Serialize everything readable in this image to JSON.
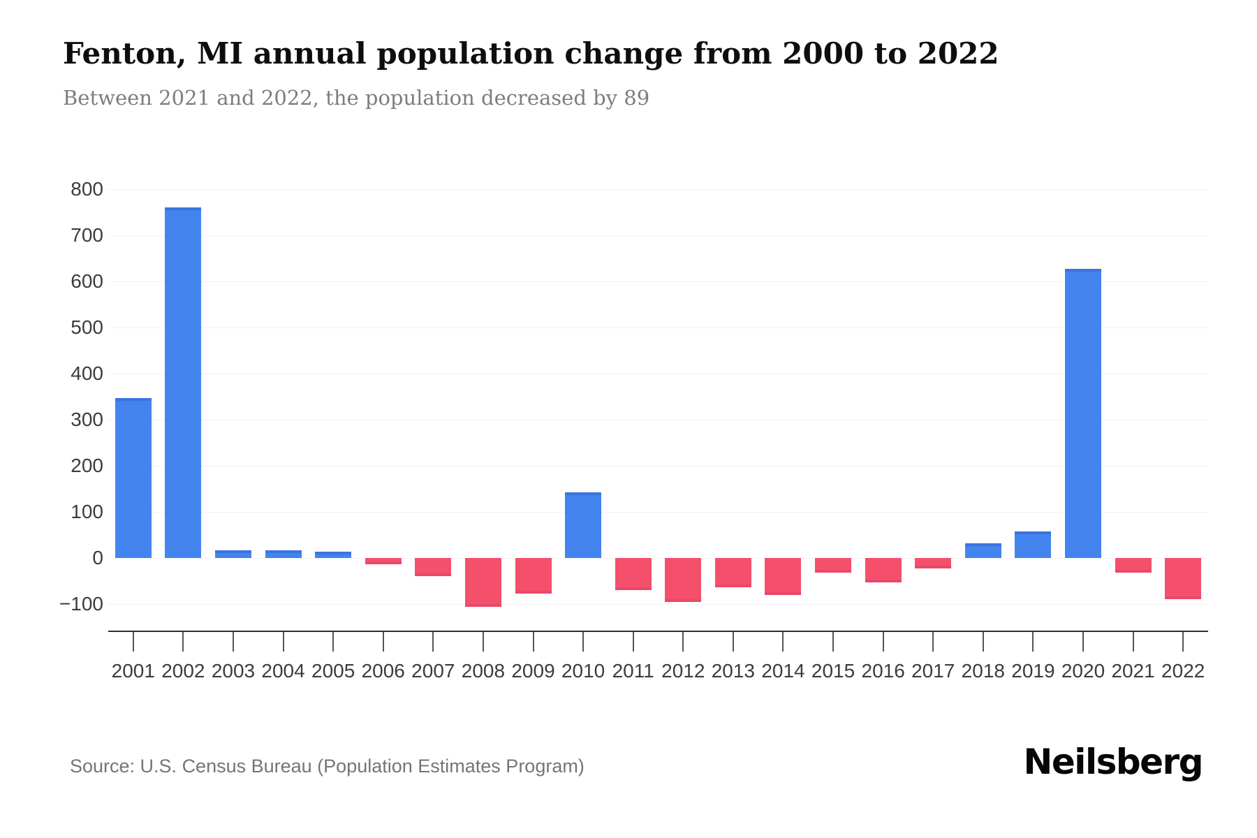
{
  "header": {
    "title": "Fenton, MI annual population change from 2000 to 2022",
    "subtitle": "Between 2021 and 2022, the population decreased by 89"
  },
  "footer": {
    "source": "Source: U.S. Census Bureau (Population Estimates Program)",
    "brand": "Neilsberg"
  },
  "chart_data": {
    "type": "bar",
    "title": "Fenton, MI annual population change from 2000 to 2022",
    "subtitle": "Between 2021 and 2022, the population decreased by 89",
    "xlabel": "",
    "ylabel": "",
    "categories": [
      "2001",
      "2002",
      "2003",
      "2004",
      "2005",
      "2006",
      "2007",
      "2008",
      "2009",
      "2010",
      "2011",
      "2012",
      "2013",
      "2014",
      "2015",
      "2016",
      "2017",
      "2018",
      "2019",
      "2020",
      "2021",
      "2022"
    ],
    "values": [
      347,
      760,
      16,
      16,
      14,
      -13,
      -40,
      -106,
      -78,
      143,
      -70,
      -95,
      -64,
      -80,
      -32,
      -53,
      -23,
      32,
      57,
      628,
      -32,
      -89
    ],
    "ytick_values": [
      800,
      700,
      600,
      500,
      400,
      300,
      200,
      100,
      0,
      -100
    ],
    "ytick_labels": [
      "800",
      "700",
      "600",
      "500",
      "400",
      "300",
      "200",
      "100",
      "0",
      "−100"
    ],
    "ylim": [
      -160,
      860
    ],
    "grid": "horizontal",
    "legend": "none",
    "colors": {
      "positive": "#4384EF",
      "positive_cap": "#3B74DE",
      "negative": "#F4506C",
      "negative_cap": "#E8486A",
      "axis_line": "#2f2f2f",
      "grid_line": "#f2f2f2",
      "tick_text": "#3c3c3c"
    }
  }
}
